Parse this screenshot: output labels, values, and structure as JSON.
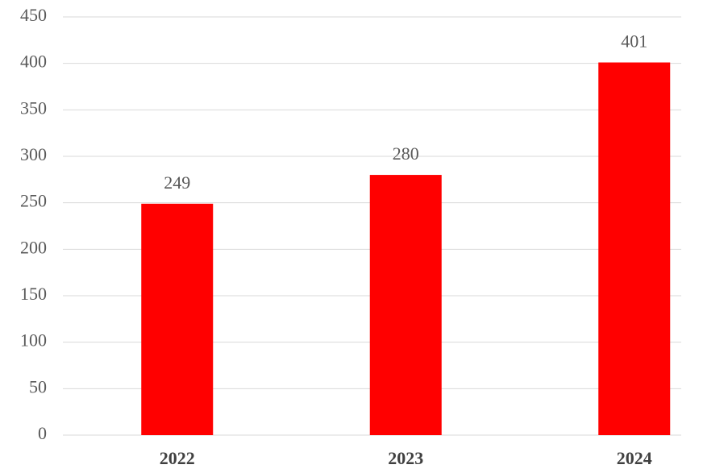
{
  "chart_data": {
    "type": "bar",
    "categories": [
      "2022",
      "2023",
      "2024"
    ],
    "values": [
      249,
      280,
      401
    ],
    "color": "#ff0000",
    "ylim": [
      0,
      450
    ],
    "yticks": [
      0,
      50,
      100,
      150,
      200,
      250,
      300,
      350,
      400,
      450
    ],
    "grid": true
  }
}
